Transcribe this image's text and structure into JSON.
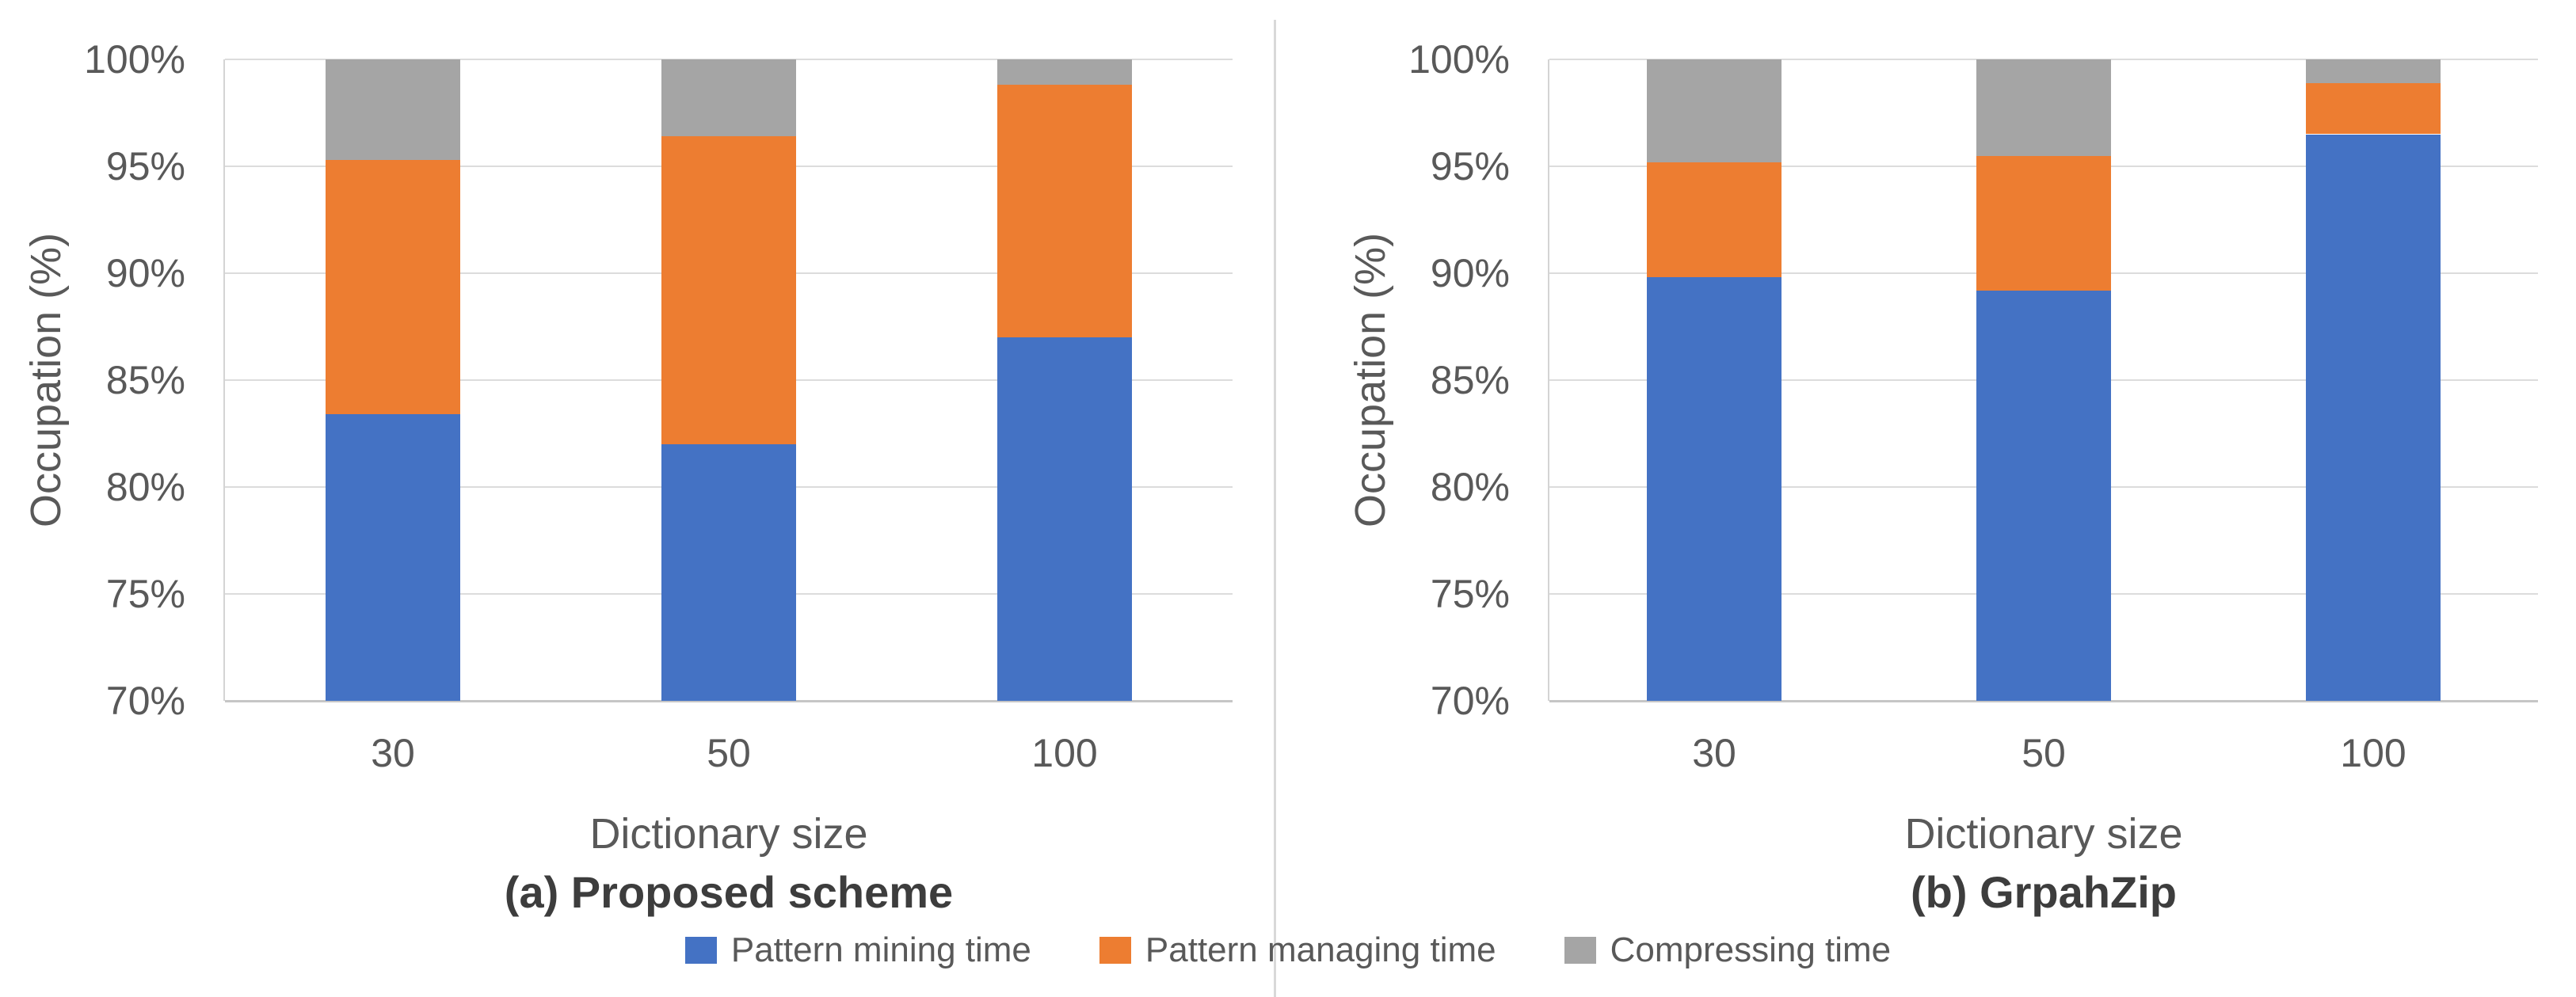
{
  "figure": {
    "description": "Two stacked bar charts comparing time occupation breakdown versus dictionary size",
    "divider_color": "#d9d9d9"
  },
  "colors": {
    "series_blue": "#4472C4",
    "series_orange": "#ED7D31",
    "series_gray": "#A5A5A5",
    "gridline": "#dcdcdc",
    "axis_line": "#c6c6c6",
    "text": "#595959",
    "caption_text": "#3d3d3d"
  },
  "legend": {
    "items": [
      {
        "label": "Pattern mining time",
        "color": "#4472C4"
      },
      {
        "label": "Pattern managing time",
        "color": "#ED7D31"
      },
      {
        "label": "Compressing time",
        "color": "#A5A5A5"
      }
    ]
  },
  "chart_data": [
    {
      "type": "bar",
      "stacked": true,
      "title": "(a) Proposed scheme",
      "xlabel": "Dictionary size",
      "ylabel": "Occupation (%)",
      "categories": [
        "30",
        "50",
        "100"
      ],
      "ylim": [
        70,
        100
      ],
      "ytick_labels": [
        "70%",
        "75%",
        "80%",
        "85%",
        "90%",
        "95%",
        "100%"
      ],
      "grid": true,
      "legend_position": "bottom",
      "series": [
        {
          "name": "Pattern mining time",
          "color": "#4472C4",
          "values_pct": [
            83.4,
            82.0,
            87.0
          ]
        },
        {
          "name": "Pattern managing time",
          "color": "#ED7D31",
          "values_pct": [
            11.9,
            14.4,
            11.8
          ]
        },
        {
          "name": "Compressing time",
          "color": "#A5A5A5",
          "values_pct": [
            4.7,
            3.6,
            1.2
          ]
        }
      ]
    },
    {
      "type": "bar",
      "stacked": true,
      "title": "(b) GrpahZip",
      "xlabel": "Dictionary size",
      "ylabel": "Occupation (%)",
      "categories": [
        "30",
        "50",
        "100"
      ],
      "ylim": [
        70,
        100
      ],
      "ytick_labels": [
        "70%",
        "75%",
        "80%",
        "85%",
        "90%",
        "95%",
        "100%"
      ],
      "grid": true,
      "legend_position": "bottom",
      "series": [
        {
          "name": "Pattern mining time",
          "color": "#4472C4",
          "values_pct": [
            89.8,
            89.2,
            96.5
          ]
        },
        {
          "name": "Pattern managing time",
          "color": "#ED7D31",
          "values_pct": [
            5.4,
            6.3,
            2.4
          ]
        },
        {
          "name": "Compressing time",
          "color": "#A5A5A5",
          "values_pct": [
            4.8,
            4.5,
            1.1
          ]
        }
      ]
    }
  ]
}
